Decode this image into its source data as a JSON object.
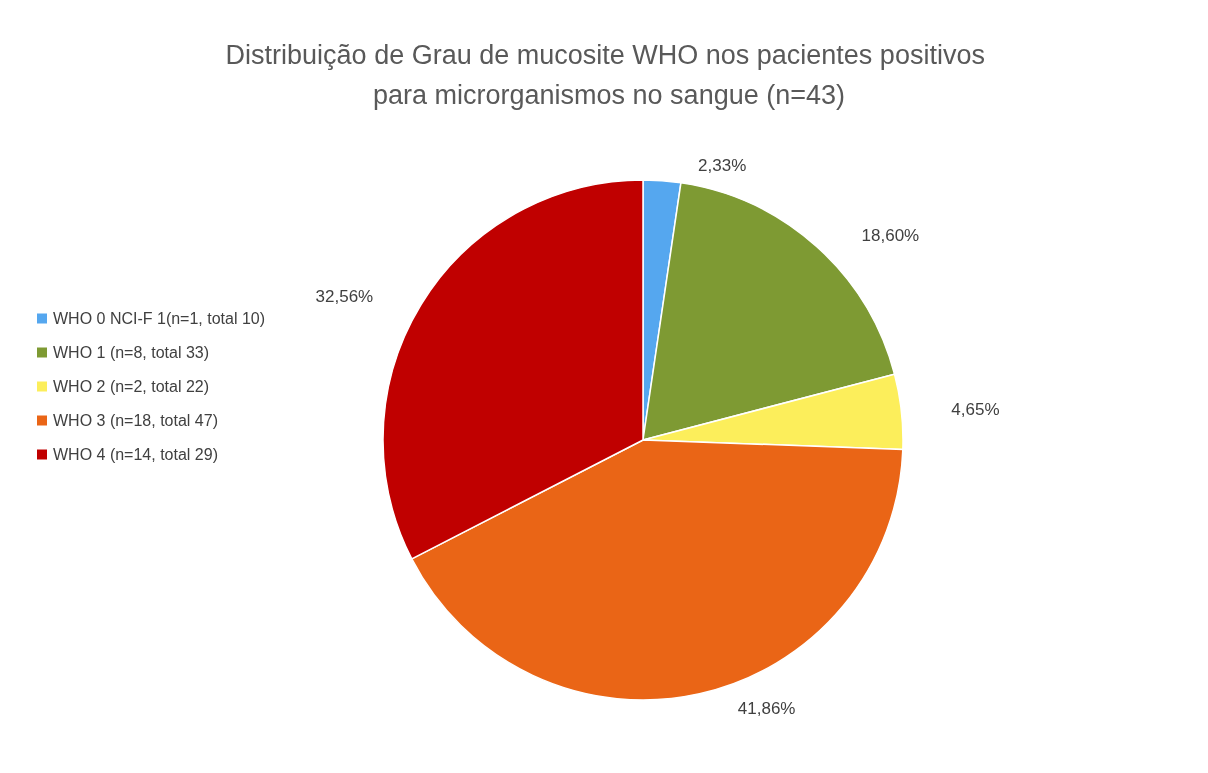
{
  "chart_data": {
    "type": "pie",
    "title": "Distribuição de Grau de mucosite WHO nos pacientes positivos para microrganismos no sangue (n=43)",
    "categories": [
      "WHO 0 NCI-F 1(n=1, total 10)",
      "WHO 1 (n=8, total 33)",
      "WHO 2 (n=2, total 22)",
      "WHO 3 (n=18, total 47)",
      "WHO 4 (n=14, total 29)"
    ],
    "values": [
      2.33,
      18.6,
      4.65,
      41.86,
      32.56
    ],
    "value_labels": [
      "2,33%",
      "18,60%",
      "4,65%",
      "41,86%",
      "32,56%"
    ],
    "colors": [
      "#55a7ef",
      "#7e9a33",
      "#fcee5b",
      "#ea6516",
      "#c00000"
    ],
    "legend": "left"
  }
}
